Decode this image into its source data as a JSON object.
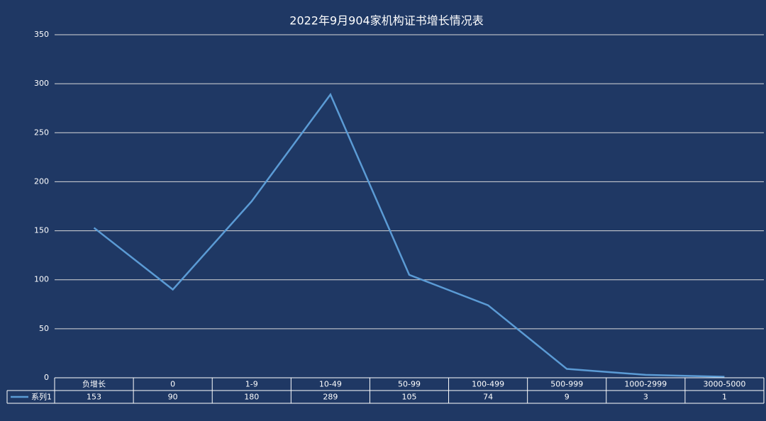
{
  "chart_data": {
    "type": "line",
    "title": "2022年9月904家机构证书增长情况表",
    "categories": [
      "负增长",
      "0",
      "1-9",
      "10-49",
      "50-99",
      "100-499",
      "500-999",
      "1000-2999",
      "3000-5000"
    ],
    "series": [
      {
        "name": "系列1",
        "color": "#5b9bd5",
        "values": [
          153,
          90,
          180,
          289,
          105,
          74,
          9,
          3,
          1
        ]
      }
    ],
    "ylim": [
      0,
      350
    ],
    "yticks": [
      0,
      50,
      100,
      150,
      200,
      250,
      300,
      350
    ],
    "grid": true,
    "data_table": true
  }
}
